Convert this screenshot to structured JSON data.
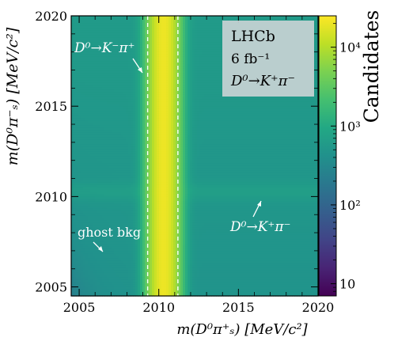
{
  "chart_data": {
    "type": "heatmap",
    "title": "",
    "xlabel": "m(D⁰π⁺ₛ)  [MeV/c²]",
    "ylabel": "m(D⁰π⁻ₛ)  [MeV/c²]",
    "xlim": [
      2004.5,
      2020
    ],
    "ylim": [
      2004.5,
      2020
    ],
    "x_ticks": [
      2005,
      2010,
      2015,
      2020
    ],
    "y_ticks": [
      2005,
      2010,
      2015,
      2020
    ],
    "x_tick_labels": [
      "2005",
      "2010",
      "2015",
      "2020"
    ],
    "y_tick_labels": [
      "2005",
      "2010",
      "2015",
      "2020"
    ],
    "colorbar": {
      "label": "Candidates",
      "scale": "log",
      "range": [
        7,
        25000
      ],
      "ticks": [
        10,
        100,
        1000,
        10000
      ],
      "tick_labels": [
        "10",
        "10²",
        "10³",
        "10⁴"
      ]
    },
    "grid": false,
    "signal_band": {
      "x_center": 2010.3,
      "x_width": 1.3,
      "peak_candidates": 20000
    },
    "cut_lines_x": [
      2009.3,
      2011.2
    ],
    "info_box": [
      "LHCb",
      "6 fb⁻¹",
      "D⁰→K⁺π⁻"
    ],
    "annotations": [
      {
        "text": "D⁰→K⁻π⁺",
        "x": 2007.1,
        "y": 2018.2,
        "arrow_to": [
          2008.5,
          2016.8
        ]
      },
      {
        "text": "ghost bkg",
        "x": 2006.1,
        "y": 2006.9,
        "arrow_to": [
          2006.5,
          2005.6
        ]
      },
      {
        "text": "D⁰→K⁺π⁻",
        "x": 2016.3,
        "y": 2007.9,
        "arrow_to": [
          2016.3,
          2010.3
        ]
      }
    ]
  }
}
